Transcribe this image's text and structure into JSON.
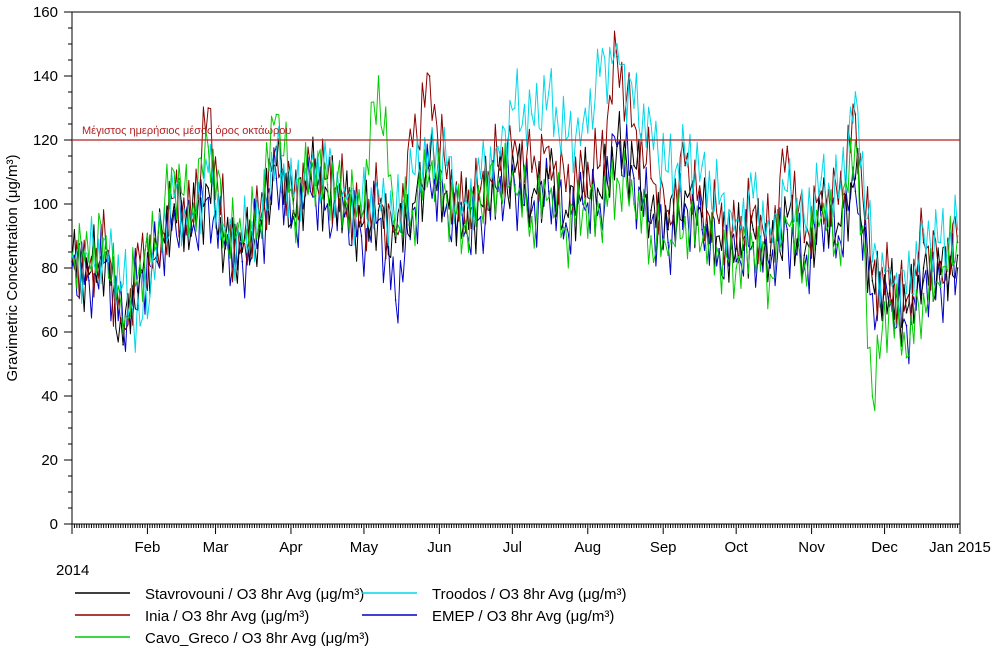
{
  "chart_data": {
    "type": "line",
    "ylabel": "Gravimetric Concentration (μg/m³)",
    "year_label": "2014",
    "ylim": [
      0,
      160
    ],
    "y_ticks": [
      0,
      20,
      40,
      60,
      80,
      100,
      120,
      140,
      160
    ],
    "y_tick_labels": [
      "0",
      "20",
      "40",
      "60",
      "80",
      "100",
      "120",
      "140",
      "160"
    ],
    "xlim": [
      "2014-01-01",
      "2015-01-01"
    ],
    "x_ticks": [
      {
        "date": "2014-02-01",
        "label": "Feb"
      },
      {
        "date": "2014-03-01",
        "label": "Mar"
      },
      {
        "date": "2014-04-01",
        "label": "Apr"
      },
      {
        "date": "2014-05-01",
        "label": "May"
      },
      {
        "date": "2014-06-01",
        "label": "Jun"
      },
      {
        "date": "2014-07-01",
        "label": "Jul"
      },
      {
        "date": "2014-08-01",
        "label": "Aug"
      },
      {
        "date": "2014-09-01",
        "label": "Sep"
      },
      {
        "date": "2014-10-01",
        "label": "Oct"
      },
      {
        "date": "2014-11-01",
        "label": "Nov"
      },
      {
        "date": "2014-12-01",
        "label": "Dec"
      },
      {
        "date": "2015-01-01",
        "label": "Jan 2015"
      }
    ],
    "reference_line": {
      "value": 120,
      "label": "Μέγιστος ημερήσιος μέσος όρος οκτάωρου",
      "color": "#b22222"
    },
    "legend_position": "bottom",
    "series": [
      {
        "name": "Stavrovouni / O3 8hr Avg (μg/m³)",
        "color": "#000000",
        "x": [
          "2014-01-01",
          "2014-01-08",
          "2014-01-15",
          "2014-01-22",
          "2014-01-29",
          "2014-02-05",
          "2014-02-12",
          "2014-02-19",
          "2014-02-26",
          "2014-03-05",
          "2014-03-12",
          "2014-03-19",
          "2014-03-26",
          "2014-04-02",
          "2014-04-09",
          "2014-04-16",
          "2014-04-23",
          "2014-04-30",
          "2014-05-07",
          "2014-05-14",
          "2014-05-21",
          "2014-05-28",
          "2014-06-04",
          "2014-06-11",
          "2014-06-18",
          "2014-06-25",
          "2014-07-02",
          "2014-07-09",
          "2014-07-16",
          "2014-07-23",
          "2014-07-30",
          "2014-08-06",
          "2014-08-13",
          "2014-08-20",
          "2014-08-27",
          "2014-09-03",
          "2014-09-10",
          "2014-09-17",
          "2014-09-24",
          "2014-10-01",
          "2014-10-08",
          "2014-10-15",
          "2014-10-22",
          "2014-10-29",
          "2014-11-05",
          "2014-11-12",
          "2014-11-19",
          "2014-11-26",
          "2014-12-03",
          "2014-12-10",
          "2014-12-17",
          "2014-12-24",
          "2014-12-31"
        ],
        "values": [
          82,
          78,
          85,
          56,
          80,
          84,
          100,
          92,
          105,
          88,
          85,
          93,
          112,
          98,
          108,
          104,
          100,
          93,
          98,
          88,
          100,
          112,
          104,
          94,
          100,
          107,
          110,
          102,
          108,
          98,
          104,
          103,
          118,
          112,
          98,
          92,
          104,
          96,
          90,
          86,
          92,
          84,
          96,
          84,
          98,
          94,
          108,
          76,
          72,
          66,
          80,
          78,
          84
        ]
      },
      {
        "name": "Troodos / O3 8hr Avg (μg/m³)",
        "color": "#00d8e8",
        "x": [
          "2014-01-01",
          "2014-01-08",
          "2014-01-15",
          "2014-01-22",
          "2014-01-29",
          "2014-02-05",
          "2014-02-12",
          "2014-02-19",
          "2014-02-26",
          "2014-03-05",
          "2014-03-12",
          "2014-03-19",
          "2014-03-26",
          "2014-04-02",
          "2014-04-09",
          "2014-04-16",
          "2014-04-23",
          "2014-04-30",
          "2014-05-07",
          "2014-05-14",
          "2014-05-21",
          "2014-05-28",
          "2014-06-04",
          "2014-06-11",
          "2014-06-18",
          "2014-06-25",
          "2014-07-02",
          "2014-07-09",
          "2014-07-16",
          "2014-07-23",
          "2014-07-30",
          "2014-08-06",
          "2014-08-13",
          "2014-08-20",
          "2014-08-27",
          "2014-09-03",
          "2014-09-10",
          "2014-09-17",
          "2014-09-24",
          "2014-10-01",
          "2014-10-08",
          "2014-10-15",
          "2014-10-22",
          "2014-10-29",
          "2014-11-05",
          "2014-11-12",
          "2014-11-19",
          "2014-11-26",
          "2014-12-03",
          "2014-12-10",
          "2014-12-17",
          "2014-12-24",
          "2014-12-31"
        ],
        "values": [
          84,
          82,
          88,
          75,
          62,
          88,
          102,
          95,
          110,
          92,
          88,
          96,
          116,
          102,
          112,
          110,
          105,
          98,
          104,
          95,
          110,
          118,
          112,
          100,
          108,
          118,
          130,
          128,
          135,
          120,
          125,
          140,
          150,
          130,
          125,
          110,
          115,
          112,
          100,
          95,
          102,
          92,
          104,
          95,
          108,
          102,
          135,
          82,
          80,
          72,
          92,
          88,
          92
        ]
      },
      {
        "name": "Inia / O3 8hr Avg (μg/m³)",
        "color": "#8b0000",
        "x": [
          "2014-01-01",
          "2014-01-08",
          "2014-01-15",
          "2014-01-22",
          "2014-01-29",
          "2014-02-05",
          "2014-02-12",
          "2014-02-19",
          "2014-02-26",
          "2014-03-05",
          "2014-03-12",
          "2014-03-19",
          "2014-03-26",
          "2014-04-02",
          "2014-04-09",
          "2014-04-16",
          "2014-04-23",
          "2014-04-30",
          "2014-05-07",
          "2014-05-14",
          "2014-05-21",
          "2014-05-28",
          "2014-06-04",
          "2014-06-11",
          "2014-06-18",
          "2014-06-25",
          "2014-07-02",
          "2014-07-09",
          "2014-07-16",
          "2014-07-23",
          "2014-07-30",
          "2014-08-06",
          "2014-08-13",
          "2014-08-20",
          "2014-08-27",
          "2014-09-03",
          "2014-09-10",
          "2014-09-17",
          "2014-09-24",
          "2014-10-01",
          "2014-10-08",
          "2014-10-15",
          "2014-10-22",
          "2014-10-29",
          "2014-11-05",
          "2014-11-12",
          "2014-11-19",
          "2014-11-26",
          "2014-12-03",
          "2014-12-10",
          "2014-12-17",
          "2014-12-24",
          "2014-12-31"
        ],
        "values": [
          84,
          80,
          86,
          62,
          82,
          86,
          102,
          96,
          130,
          90,
          88,
          95,
          118,
          100,
          112,
          108,
          102,
          96,
          100,
          92,
          118,
          140,
          108,
          98,
          105,
          112,
          120,
          110,
          118,
          104,
          110,
          112,
          146,
          125,
          108,
          98,
          112,
          100,
          94,
          90,
          98,
          88,
          118,
          88,
          104,
          100,
          128,
          78,
          75,
          70,
          88,
          82,
          88
        ]
      },
      {
        "name": "EMEP / O3 8hr Avg (μg/m³)",
        "color": "#0000c8",
        "x": [
          "2014-01-01",
          "2014-01-08",
          "2014-01-15",
          "2014-01-22",
          "2014-01-29",
          "2014-02-05",
          "2014-02-12",
          "2014-02-19",
          "2014-02-26",
          "2014-03-05",
          "2014-03-12",
          "2014-03-19",
          "2014-03-26",
          "2014-04-02",
          "2014-04-09",
          "2014-04-16",
          "2014-04-23",
          "2014-04-30",
          "2014-05-07",
          "2014-05-14",
          "2014-05-21",
          "2014-05-28",
          "2014-06-04",
          "2014-06-11",
          "2014-06-18",
          "2014-06-25",
          "2014-07-02",
          "2014-07-09",
          "2014-07-16",
          "2014-07-23",
          "2014-07-30",
          "2014-08-06",
          "2014-08-13",
          "2014-08-20",
          "2014-08-27",
          "2014-09-03",
          "2014-09-10",
          "2014-09-17",
          "2014-09-24",
          "2014-10-01",
          "2014-10-08",
          "2014-10-15",
          "2014-10-22",
          "2014-10-29",
          "2014-11-05",
          "2014-11-12",
          "2014-11-19",
          "2014-11-26",
          "2014-12-03",
          "2014-12-10",
          "2014-12-17",
          "2014-12-24",
          "2014-12-31"
        ],
        "values": [
          80,
          76,
          82,
          62,
          78,
          82,
          98,
          90,
          102,
          86,
          82,
          90,
          108,
          96,
          104,
          100,
          96,
          90,
          95,
          70,
          98,
          108,
          100,
          90,
          96,
          104,
          106,
          98,
          104,
          94,
          100,
          100,
          118,
          108,
          94,
          88,
          100,
          92,
          86,
          82,
          88,
          80,
          92,
          80,
          95,
          90,
          104,
          72,
          68,
          62,
          76,
          74,
          80
        ]
      },
      {
        "name": "Cavo_Greco / O3 8hr Avg (μg/m³)",
        "color": "#00cc00",
        "x": [
          "2014-01-01",
          "2014-01-08",
          "2014-01-15",
          "2014-01-22",
          "2014-01-29",
          "2014-02-05",
          "2014-02-12",
          "2014-02-19",
          "2014-02-26",
          "2014-03-05",
          "2014-03-12",
          "2014-03-19",
          "2014-03-26",
          "2014-04-02",
          "2014-04-09",
          "2014-04-16",
          "2014-04-23",
          "2014-04-30",
          "2014-05-07",
          "2014-05-14",
          "2014-05-21",
          "2014-05-28",
          "2014-06-04",
          "2014-06-11",
          "2014-06-18",
          "2014-06-25",
          "2014-07-02",
          "2014-07-09",
          "2014-07-16",
          "2014-07-23",
          "2014-07-30",
          "2014-08-06",
          "2014-08-13",
          "2014-08-20",
          "2014-08-27",
          "2014-09-03",
          "2014-09-10",
          "2014-09-17",
          "2014-09-24",
          "2014-10-01",
          "2014-10-08",
          "2014-10-15",
          "2014-10-22",
          "2014-10-29",
          "2014-11-05",
          "2014-11-12",
          "2014-11-19",
          "2014-11-26",
          "2014-12-03",
          "2014-12-10",
          "2014-12-17",
          "2014-12-24",
          "2014-12-31"
        ],
        "values": [
          85,
          82,
          90,
          60,
          82,
          88,
          110,
          96,
          118,
          92,
          88,
          96,
          128,
          100,
          110,
          106,
          102,
          96,
          140,
          90,
          98,
          110,
          102,
          92,
          100,
          108,
          104,
          96,
          102,
          92,
          98,
          96,
          108,
          100,
          90,
          84,
          96,
          88,
          84,
          80,
          86,
          78,
          94,
          82,
          96,
          88,
          120,
          40,
          70,
          52,
          72,
          74,
          90
        ]
      }
    ]
  }
}
